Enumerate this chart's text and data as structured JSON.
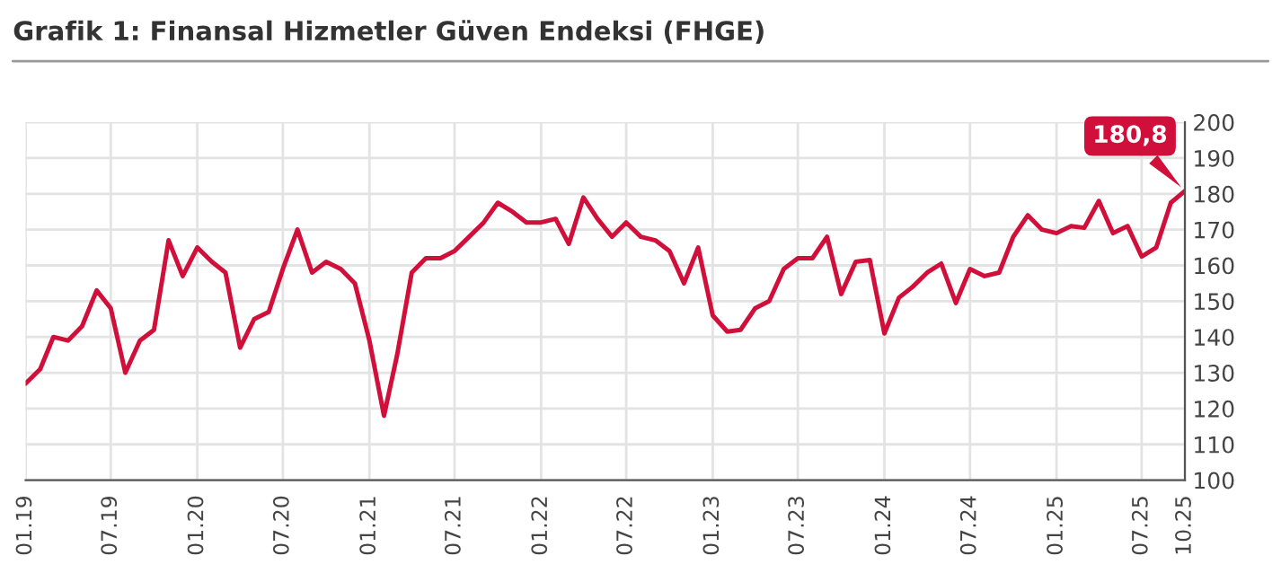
{
  "chart_data": {
    "type": "line",
    "title": "Grafik 1: Finansal Hizmetler Güven Endeksi (FHGE)",
    "x": [
      "2019-01",
      "2019-02",
      "2019-03",
      "2019-04",
      "2019-05",
      "2019-06",
      "2019-07",
      "2019-08",
      "2019-09",
      "2019-10",
      "2019-11",
      "2019-12",
      "2020-01",
      "2020-02",
      "2020-03",
      "2020-04",
      "2020-05",
      "2020-06",
      "2020-07",
      "2020-08",
      "2020-09",
      "2020-10",
      "2020-11",
      "2020-12",
      "2021-01",
      "2021-02",
      "2021-03",
      "2021-04",
      "2021-05",
      "2021-06",
      "2021-07",
      "2021-08",
      "2021-09",
      "2021-10",
      "2021-11",
      "2021-12",
      "2022-01",
      "2022-02",
      "2022-03",
      "2022-04",
      "2022-05",
      "2022-06",
      "2022-07",
      "2022-08",
      "2022-09",
      "2022-10",
      "2022-11",
      "2022-12",
      "2023-01",
      "2023-02",
      "2023-03",
      "2023-04",
      "2023-05",
      "2023-06",
      "2023-07",
      "2023-08",
      "2023-09",
      "2023-10",
      "2023-11",
      "2023-12",
      "2024-01",
      "2024-02",
      "2024-03",
      "2024-04",
      "2024-05",
      "2024-06",
      "2024-07",
      "2024-08",
      "2024-09",
      "2024-10",
      "2024-11",
      "2024-12",
      "2025-01",
      "2025-02",
      "2025-03",
      "2025-04",
      "2025-05",
      "2025-06",
      "2025-07",
      "2025-08",
      "2025-09",
      "2025-10"
    ],
    "series": [
      {
        "color": "#d0103a",
        "values": [
          127,
          131,
          140,
          139,
          143,
          153,
          148,
          130,
          139,
          142,
          167,
          157,
          165,
          161,
          158,
          137,
          145,
          147,
          159,
          170,
          158,
          161,
          159,
          155,
          139,
          118,
          135,
          158,
          162,
          162,
          164,
          168,
          172,
          177.5,
          175,
          172,
          172,
          173,
          166,
          179,
          173,
          168,
          172,
          168,
          167,
          164,
          155,
          165,
          146,
          141.5,
          142,
          148,
          150,
          159,
          162,
          162,
          168,
          152,
          161,
          161.5,
          141,
          151,
          154,
          158,
          160.5,
          149.5,
          159,
          157,
          158,
          168,
          174,
          170,
          169,
          171,
          170.5,
          178,
          169,
          171,
          162.5,
          165,
          177.5,
          180.8
        ]
      }
    ],
    "annotations": [
      {
        "text": "180,8",
        "x": "2025-10",
        "y": 180.8
      }
    ],
    "xlim": [
      "2019-01",
      "2025-10"
    ],
    "xticks": [
      {
        "value": "2019-01",
        "label": "01.19"
      },
      {
        "value": "2019-07",
        "label": "07.19"
      },
      {
        "value": "2020-01",
        "label": "01.20"
      },
      {
        "value": "2020-07",
        "label": "07.20"
      },
      {
        "value": "2021-01",
        "label": "01.21"
      },
      {
        "value": "2021-07",
        "label": "07.21"
      },
      {
        "value": "2022-01",
        "label": "01.22"
      },
      {
        "value": "2022-07",
        "label": "07.22"
      },
      {
        "value": "2023-01",
        "label": "01.23"
      },
      {
        "value": "2023-07",
        "label": "07.23"
      },
      {
        "value": "2024-01",
        "label": "01.24"
      },
      {
        "value": "2024-07",
        "label": "07.24"
      },
      {
        "value": "2025-01",
        "label": "01.25"
      },
      {
        "value": "2025-07",
        "label": "07.25"
      },
      {
        "value": "2025-10",
        "label": "10.25"
      }
    ],
    "ylim": [
      100,
      200
    ],
    "yticks": [
      100,
      110,
      120,
      130,
      140,
      150,
      160,
      170,
      180,
      190,
      200
    ],
    "grid": true,
    "legend": false,
    "marker": "none",
    "line_style": "solid"
  }
}
